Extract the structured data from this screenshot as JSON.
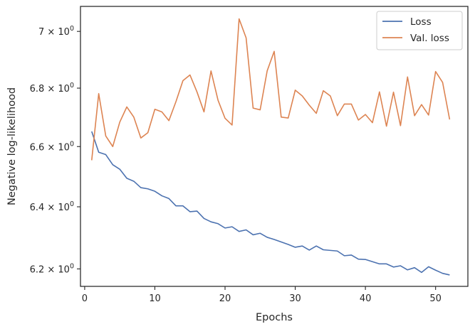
{
  "chart_data": {
    "type": "line",
    "xlabel": "Epochs",
    "ylabel": "Negative log-likelihood",
    "yscale": "log",
    "xlim": [
      -0.6,
      54.6
    ],
    "ylim": [
      6.145,
      7.09
    ],
    "grid": false,
    "legend_position": "top-right",
    "x_ticks": [
      0,
      10,
      20,
      30,
      40,
      50
    ],
    "x_tick_labels": [
      "0",
      "10",
      "20",
      "30",
      "40",
      "50"
    ],
    "y_ticks": [
      6.2,
      6.4,
      6.6,
      6.8,
      7.0
    ],
    "y_tick_labels": [
      {
        "mantissa": "6.2",
        "exp": "0"
      },
      {
        "mantissa": "6.4",
        "exp": "0"
      },
      {
        "mantissa": "6.6",
        "exp": "0"
      },
      {
        "mantissa": "6.8",
        "exp": "0"
      },
      {
        "mantissa": "7",
        "exp": "0"
      }
    ],
    "times_symbol": "×",
    "base": "10",
    "x": [
      1,
      2,
      3,
      4,
      5,
      6,
      7,
      8,
      9,
      10,
      11,
      12,
      13,
      14,
      15,
      16,
      17,
      18,
      19,
      20,
      21,
      22,
      23,
      24,
      25,
      26,
      27,
      28,
      29,
      30,
      31,
      32,
      33,
      34,
      35,
      36,
      37,
      38,
      39,
      40,
      41,
      42,
      43,
      44,
      45,
      46,
      47,
      48,
      49,
      50,
      51,
      52
    ],
    "series": [
      {
        "name": "Loss",
        "color": "#4c72b0",
        "values": [
          6.651,
          6.581,
          6.573,
          6.539,
          6.524,
          6.494,
          6.484,
          6.463,
          6.459,
          6.451,
          6.436,
          6.427,
          6.403,
          6.403,
          6.384,
          6.386,
          6.362,
          6.351,
          6.345,
          6.331,
          6.335,
          6.32,
          6.325,
          6.309,
          6.314,
          6.301,
          6.294,
          6.286,
          6.278,
          6.269,
          6.273,
          6.26,
          6.273,
          6.261,
          6.259,
          6.257,
          6.242,
          6.244,
          6.231,
          6.23,
          6.223,
          6.216,
          6.216,
          6.206,
          6.21,
          6.197,
          6.204,
          6.189,
          6.207,
          6.196,
          6.186,
          6.181
        ]
      },
      {
        "name": "Val. loss",
        "color": "#dd8452",
        "values": [
          6.554,
          6.781,
          6.636,
          6.6,
          6.683,
          6.735,
          6.7,
          6.629,
          6.647,
          6.727,
          6.718,
          6.688,
          6.753,
          6.826,
          6.846,
          6.787,
          6.718,
          6.86,
          6.758,
          6.696,
          6.673,
          7.045,
          6.977,
          6.731,
          6.725,
          6.86,
          6.929,
          6.7,
          6.697,
          6.793,
          6.773,
          6.741,
          6.713,
          6.791,
          6.773,
          6.705,
          6.745,
          6.745,
          6.69,
          6.709,
          6.681,
          6.787,
          6.669,
          6.786,
          6.671,
          6.839,
          6.705,
          6.743,
          6.707,
          6.858,
          6.82,
          6.692
        ]
      }
    ]
  }
}
